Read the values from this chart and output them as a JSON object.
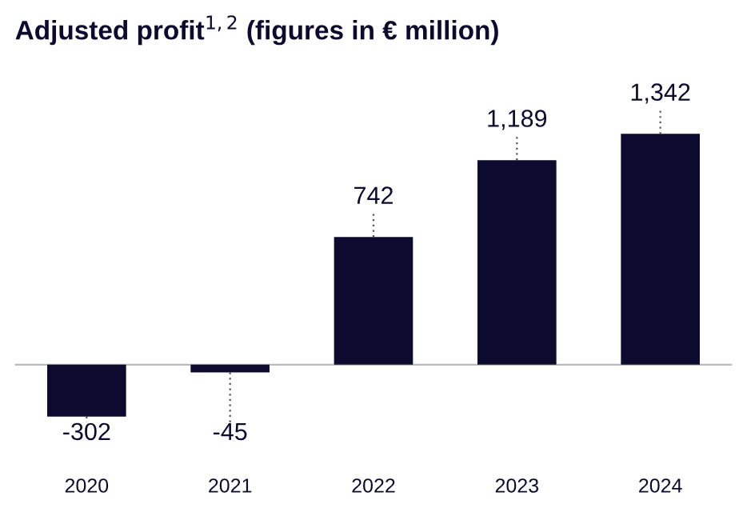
{
  "chart_data": {
    "type": "bar",
    "title": "Adjusted profit$^{1,2}$ (figures in € million)",
    "categories": [
      "2020",
      "2021",
      "2022",
      "2023",
      "2024"
    ],
    "values": [
      -302,
      -45,
      742,
      1189,
      1342
    ],
    "value_labels": [
      "-302",
      "-45",
      "742",
      "1,189",
      "1,342"
    ],
    "color": "#0c0b2f"
  }
}
